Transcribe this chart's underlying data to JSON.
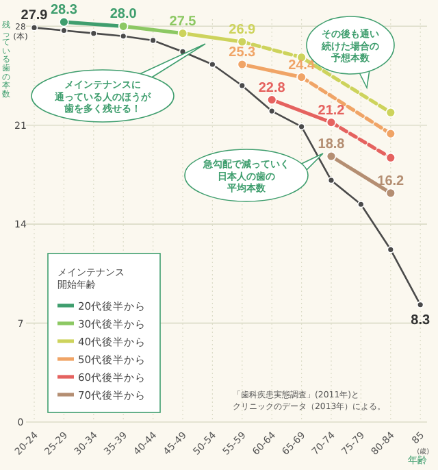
{
  "chart_data": {
    "type": "line",
    "ylabel": "残っている歯の本数",
    "xlabel": "年齢",
    "legend_title": "メインテナンス開始年齢",
    "categories": [
      "20-24",
      "25-29",
      "30-34",
      "35-39",
      "40-44",
      "45-49",
      "50-54",
      "55-59",
      "60-64",
      "65-69",
      "70-74",
      "75-79",
      "80-84",
      "85\n(歳)"
    ],
    "ylim": [
      0,
      28.5
    ],
    "yticks": [
      0,
      7,
      14,
      21,
      {
        "value": 28,
        "label": "28\n(本)"
      }
    ],
    "grid": true,
    "legend": "bottom left",
    "marker": "circle",
    "series": [
      {
        "color": "#4a4a4a",
        "values": [
          27.9,
          27.7,
          27.5,
          27.3,
          27.0,
          26.2,
          25.3,
          23.8,
          22.0,
          20.9,
          17.1,
          15.4,
          12.2,
          8.3
        ],
        "value_labels": [
          "27.9",
          null,
          null,
          null,
          null,
          null,
          null,
          null,
          null,
          null,
          null,
          null,
          null,
          "8.3"
        ]
      },
      {
        "name": "20代後半から",
        "color": "#3f9e6e",
        "values": [
          null,
          28.3,
          null,
          28.0,
          null,
          null,
          null,
          null,
          null,
          null,
          null,
          null,
          null,
          null
        ],
        "value_labels": [
          null,
          "28.3",
          null,
          "28.0",
          null,
          null,
          null,
          null,
          null,
          null,
          null,
          null,
          null,
          null
        ]
      },
      {
        "name": "30代後半から",
        "color": "#8cc863",
        "values": [
          null,
          null,
          null,
          28.0,
          null,
          27.5,
          null,
          null,
          null,
          null,
          null,
          null,
          null,
          null
        ],
        "value_labels": [
          null,
          null,
          null,
          null,
          null,
          "27.5",
          null,
          null,
          null,
          null,
          null,
          null,
          null,
          null
        ]
      },
      {
        "name": "40代後半から",
        "color": "#cdd35c",
        "values": [
          null,
          null,
          null,
          null,
          null,
          27.5,
          null,
          26.9,
          null,
          null,
          null,
          null,
          null,
          null
        ],
        "value_labels": [
          null,
          null,
          null,
          null,
          null,
          null,
          null,
          "26.9",
          null,
          null,
          null,
          null,
          null,
          null
        ]
      },
      {
        "color": "#cdd35c",
        "line_style": "dashed",
        "values": [
          null,
          null,
          null,
          null,
          null,
          null,
          null,
          26.9,
          null,
          25.8,
          null,
          null,
          21.9,
          null
        ]
      },
      {
        "name": "50代後半から",
        "color": "#f0a466",
        "values": [
          null,
          null,
          null,
          null,
          null,
          null,
          null,
          25.3,
          null,
          24.4,
          null,
          null,
          null,
          null
        ],
        "value_labels": [
          null,
          null,
          null,
          null,
          null,
          null,
          null,
          "25.3",
          null,
          "24.4",
          null,
          null,
          null,
          null
        ]
      },
      {
        "color": "#f0a466",
        "line_style": "dashed",
        "values": [
          null,
          null,
          null,
          null,
          null,
          null,
          null,
          null,
          null,
          24.4,
          null,
          null,
          20.4,
          null
        ]
      },
      {
        "name": "60代後半から",
        "color": "#e5625f",
        "values": [
          null,
          null,
          null,
          null,
          null,
          null,
          null,
          null,
          22.8,
          null,
          21.2,
          null,
          null,
          null
        ],
        "value_labels": [
          null,
          null,
          null,
          null,
          null,
          null,
          null,
          null,
          "22.8",
          null,
          "21.2",
          null,
          null,
          null
        ]
      },
      {
        "color": "#e5625f",
        "line_style": "dashed",
        "values": [
          null,
          null,
          null,
          null,
          null,
          null,
          null,
          null,
          null,
          null,
          21.2,
          null,
          18.7,
          null
        ]
      },
      {
        "name": "70代後半から",
        "color": "#b48e72",
        "values": [
          null,
          null,
          null,
          null,
          null,
          null,
          null,
          null,
          null,
          null,
          18.8,
          null,
          16.2,
          null
        ],
        "value_labels": [
          null,
          null,
          null,
          null,
          null,
          null,
          null,
          null,
          null,
          null,
          "18.8",
          null,
          "16.2",
          null
        ]
      }
    ],
    "annotations": [
      "メインテナンスに通っている人のほうが歯を多く残せる！",
      "急勾配で減っていく日本人の歯の平均本数",
      "その後も通い続けた場合の予想本数",
      "「歯科疾患実態調査」(2011年)とクリニックのデータ（2013年）による。"
    ]
  }
}
